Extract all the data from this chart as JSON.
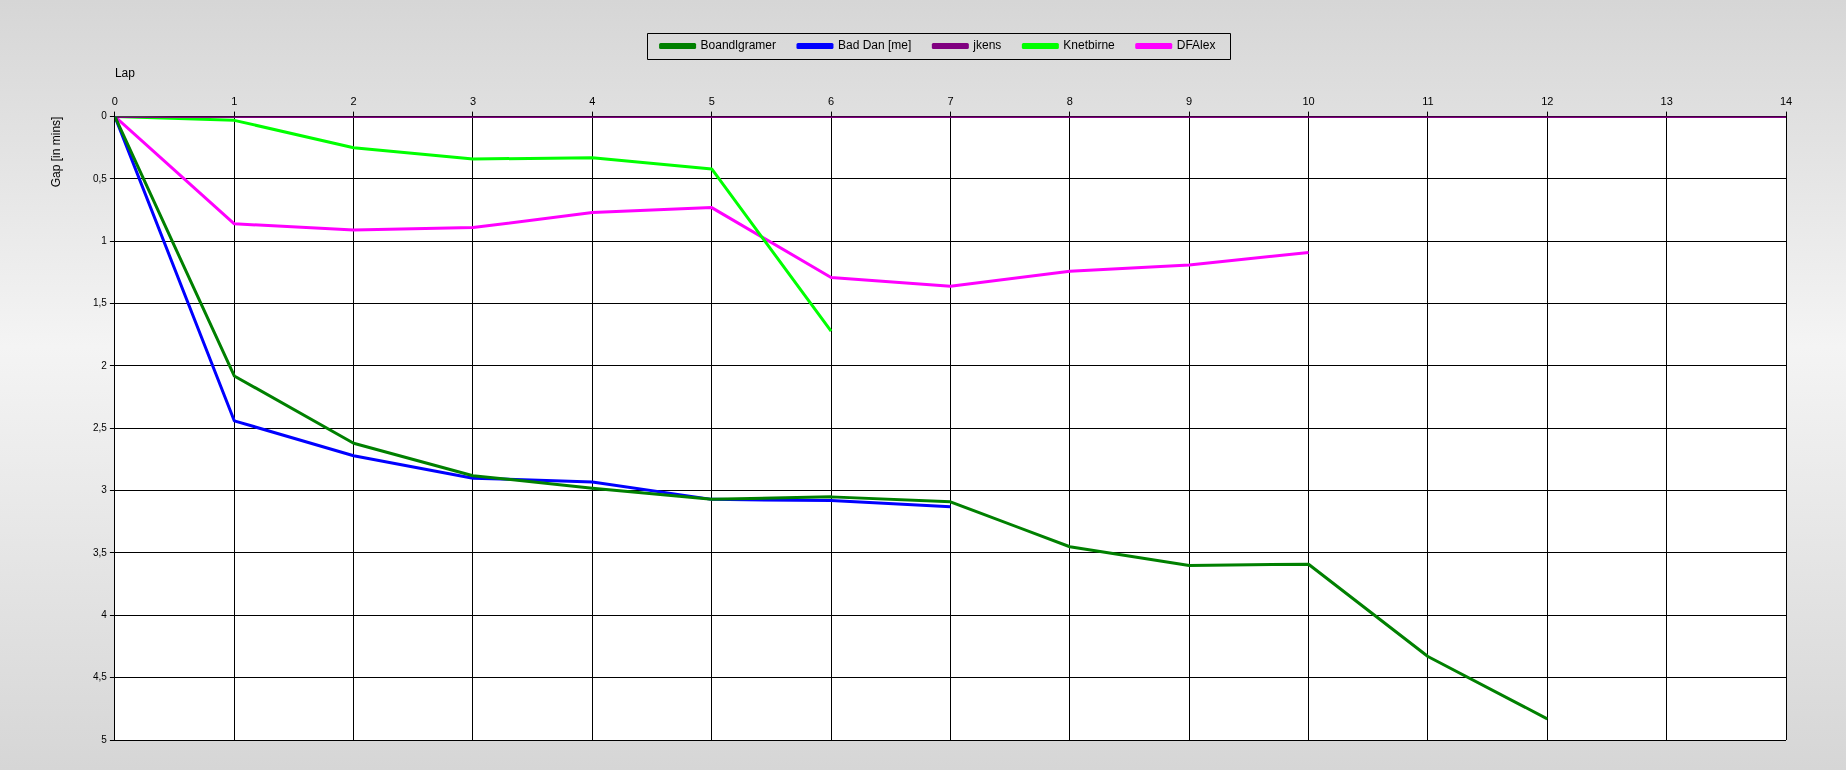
{
  "chart_data": {
    "type": "line",
    "xlabel": "Lap",
    "ylabel": "Gap [in mins]",
    "xlim": [
      0,
      14
    ],
    "xticks": [
      0,
      1,
      2,
      3,
      4,
      5,
      6,
      7,
      8,
      9,
      10,
      11,
      12,
      13,
      14
    ],
    "ylim": [
      5,
      0
    ],
    "yticks": [
      0,
      {
        "value": 0.5,
        "label": "0,5"
      },
      1,
      {
        "value": 1.5,
        "label": "1,5"
      },
      2,
      {
        "value": 2.5,
        "label": "2,5"
      },
      3,
      {
        "value": 3.5,
        "label": "3,5"
      },
      4,
      {
        "value": 4.5,
        "label": "4,5"
      },
      5
    ],
    "grid": true,
    "legend": "top",
    "marker": "none",
    "line_style": "solid",
    "series": [
      {
        "name": "Boandlgramer",
        "color": "#008000",
        "x": [
          0,
          1,
          2,
          3,
          4,
          5,
          6,
          7,
          8,
          9,
          10,
          11,
          12
        ],
        "values": [
          0,
          2.08,
          2.62,
          2.88,
          2.98,
          3.07,
          3.05,
          3.09,
          3.45,
          3.6,
          3.59,
          4.33,
          4.83
        ]
      },
      {
        "name": "Bad Dan [me]",
        "color": "#0000ff",
        "x": [
          0,
          1,
          2,
          3,
          4,
          5,
          6,
          7
        ],
        "values": [
          0,
          2.44,
          2.72,
          2.9,
          2.93,
          3.07,
          3.08,
          3.13
        ]
      },
      {
        "name": "jkens",
        "color": "#800080",
        "x": [
          0,
          1,
          2,
          3,
          4,
          5,
          6,
          7,
          8,
          9,
          10,
          11,
          12,
          13,
          14
        ],
        "values": [
          0,
          0,
          0,
          0,
          0,
          0,
          0,
          0,
          0,
          0,
          0,
          0,
          0,
          0,
          0
        ]
      },
      {
        "name": "Knetbirne",
        "color": "#00ff00",
        "x": [
          0,
          1,
          2,
          3,
          4,
          5,
          6
        ],
        "values": [
          0,
          0.03,
          0.25,
          0.34,
          0.33,
          0.42,
          1.72
        ]
      },
      {
        "name": "DFAlex",
        "color": "#ff00ff",
        "x": [
          0,
          1,
          2,
          3,
          4,
          5,
          6,
          7,
          8,
          9,
          10
        ],
        "values": [
          0,
          0.86,
          0.91,
          0.89,
          0.77,
          0.73,
          1.29,
          1.36,
          1.24,
          1.19,
          1.09
        ]
      }
    ]
  }
}
